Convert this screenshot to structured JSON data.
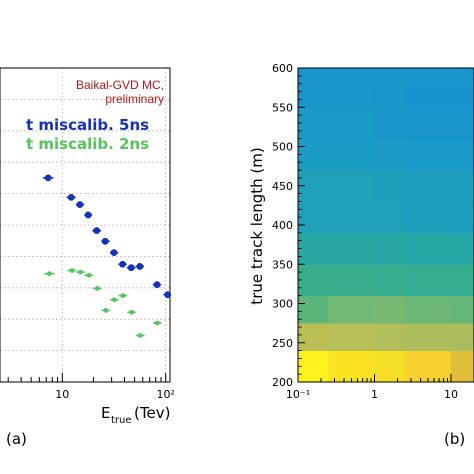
{
  "chart_data": [
    {
      "type": "scatter",
      "xscale": "log",
      "xlim": [
        2.5,
        110
      ],
      "ylim": [
        0,
        1
      ],
      "x_ticks": [
        10,
        100
      ],
      "x_tick_labels": [
        "10",
        "10²"
      ],
      "xlabel_main": "E",
      "xlabel_sub": "true",
      "xlabel_unit": "(Tev)",
      "annotation": [
        "Baikal-GVD MC,",
        "preliminary"
      ],
      "annotation_color": "#b01818",
      "series": [
        {
          "name": "t miscalib. 5ns",
          "color": "#1533b8",
          "points": [
            {
              "x": 7.3,
              "y": 0.65,
              "xerr": [
                6.5,
                8.2
              ]
            },
            {
              "x": 12.2,
              "y": 0.588,
              "xerr": [
                11.0,
                13.5
              ]
            },
            {
              "x": 14.8,
              "y": 0.565,
              "xerr": [
                13.5,
                16.3
              ]
            },
            {
              "x": 17.8,
              "y": 0.532,
              "xerr": [
                16.3,
                19.5
              ]
            },
            {
              "x": 21.5,
              "y": 0.482,
              "xerr": [
                19.5,
                23.8
              ]
            },
            {
              "x": 26.0,
              "y": 0.448,
              "xerr": [
                23.8,
                28.8
              ]
            },
            {
              "x": 31.6,
              "y": 0.412,
              "xerr": [
                28.8,
                34.8
              ]
            },
            {
              "x": 38.3,
              "y": 0.375,
              "xerr": [
                34.8,
                42.0
              ]
            },
            {
              "x": 46.4,
              "y": 0.364,
              "xerr": [
                42.0,
                51.0
              ]
            },
            {
              "x": 56.2,
              "y": 0.368,
              "xerr": [
                51.0,
                61.8
              ]
            },
            {
              "x": 82.5,
              "y": 0.31,
              "xerr": [
                75.0,
                90.5
              ]
            },
            {
              "x": 104.5,
              "y": 0.278,
              "xerr": [
                95.0,
                110.0
              ]
            }
          ]
        },
        {
          "name": "t miscalib. 2ns",
          "color": "#55c45a",
          "points": [
            {
              "x": 7.5,
              "y": 0.345,
              "xerr": [
                6.7,
                8.4
              ]
            },
            {
              "x": 12.4,
              "y": 0.355,
              "xerr": [
                11.2,
                13.7
              ]
            },
            {
              "x": 15.0,
              "y": 0.35,
              "xerr": [
                13.7,
                16.5
              ]
            },
            {
              "x": 18.1,
              "y": 0.34,
              "xerr": [
                16.5,
                19.8
              ]
            },
            {
              "x": 21.8,
              "y": 0.298,
              "xerr": [
                19.8,
                24.0
              ]
            },
            {
              "x": 26.4,
              "y": 0.228,
              "xerr": [
                24.0,
                29.0
              ]
            },
            {
              "x": 31.9,
              "y": 0.262,
              "xerr": [
                29.0,
                35.0
              ]
            },
            {
              "x": 38.6,
              "y": 0.275,
              "xerr": [
                35.0,
                42.5
              ]
            },
            {
              "x": 46.8,
              "y": 0.222,
              "xerr": [
                42.5,
                51.3
              ]
            },
            {
              "x": 56.8,
              "y": 0.148,
              "xerr": [
                51.3,
                62.5
              ]
            },
            {
              "x": 82.8,
              "y": 0.188,
              "xerr": [
                75.3,
                91.0
              ]
            }
          ]
        }
      ]
    },
    {
      "type": "heatmap",
      "xscale": "log",
      "xlim": [
        0.1,
        20
      ],
      "ylim": [
        200,
        600
      ],
      "x_ticks": [
        0.1,
        1,
        10
      ],
      "x_tick_labels": [
        "10⁻¹",
        "1",
        "10"
      ],
      "y_ticks": [
        200,
        250,
        300,
        350,
        400,
        450,
        500,
        550,
        600
      ],
      "ylabel": "true track length (m)",
      "x_bin_edges": [
        0.1,
        0.25,
        1.0,
        2.5,
        10.0,
        20.0
      ],
      "y_bin_edges": [
        200,
        240,
        275,
        310,
        350,
        390,
        430,
        470,
        510,
        550,
        580,
        600
      ],
      "cells": [
        [
          "#fff21e",
          "#fbe324",
          "#f5df26",
          "#f5d02f",
          "#e0bf3a"
        ],
        [
          "#bbbf56",
          "#b6bf58",
          "#b2be5a",
          "#aebd5c",
          "#abbd5d"
        ],
        [
          "#5bb679",
          "#73b974",
          "#77b973",
          "#6bb776",
          "#66b677"
        ],
        [
          "#38ae8d",
          "#38ae8d",
          "#37ae8f",
          "#35ad91",
          "#35ad91"
        ],
        [
          "#29a7a2",
          "#29a7a2",
          "#28a7a4",
          "#27a6a6",
          "#27a6a6"
        ],
        [
          "#1fa1ba",
          "#1fa1ba",
          "#1fa1ba",
          "#1e9fbe",
          "#1e9fbe"
        ],
        [
          "#1fa1ba",
          "#1fa1ba",
          "#1ea0bc",
          "#1e9fbe",
          "#1e9fbe"
        ],
        [
          "#1b9cc4",
          "#1b9cc4",
          "#1b9bc6",
          "#1a9ac8",
          "#1a9ac8"
        ],
        [
          "#1a9ac8",
          "#1a9ac8",
          "#1997ca",
          "#1896cc",
          "#1896cc"
        ],
        [
          "#1997ca",
          "#1997ca",
          "#1896cc",
          "#1794ce",
          "#1794ce"
        ],
        [
          "#1997ca",
          "#1997ca",
          "#1997ca",
          "#1896cc",
          "#1896cc"
        ]
      ]
    }
  ],
  "panel_labels": {
    "left": "(a)",
    "right": "(b)"
  }
}
